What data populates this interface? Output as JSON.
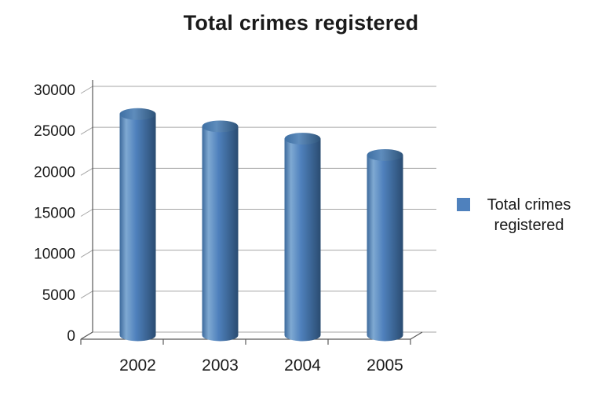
{
  "chart_data": {
    "type": "bar",
    "subtype": "3d-cylinder",
    "title": "Total crimes registered",
    "categories": [
      "2002",
      "2003",
      "2004",
      "2005"
    ],
    "series": [
      {
        "name": "Total crimes registered",
        "values": [
          27000,
          25500,
          24000,
          22000
        ]
      }
    ],
    "xlabel": "",
    "ylabel": "",
    "ylim": [
      0,
      30000
    ],
    "yticks": [
      0,
      5000,
      10000,
      15000,
      20000,
      25000,
      30000
    ],
    "grid": true,
    "legend_position": "right",
    "colors": {
      "bar": "#4F81BD",
      "bar_highlight": "#7FA9D2",
      "bar_shadow": "#2A4C71",
      "gridline": "#A6A6A6",
      "axis": "#595959",
      "text": "#1A1A1A"
    }
  }
}
